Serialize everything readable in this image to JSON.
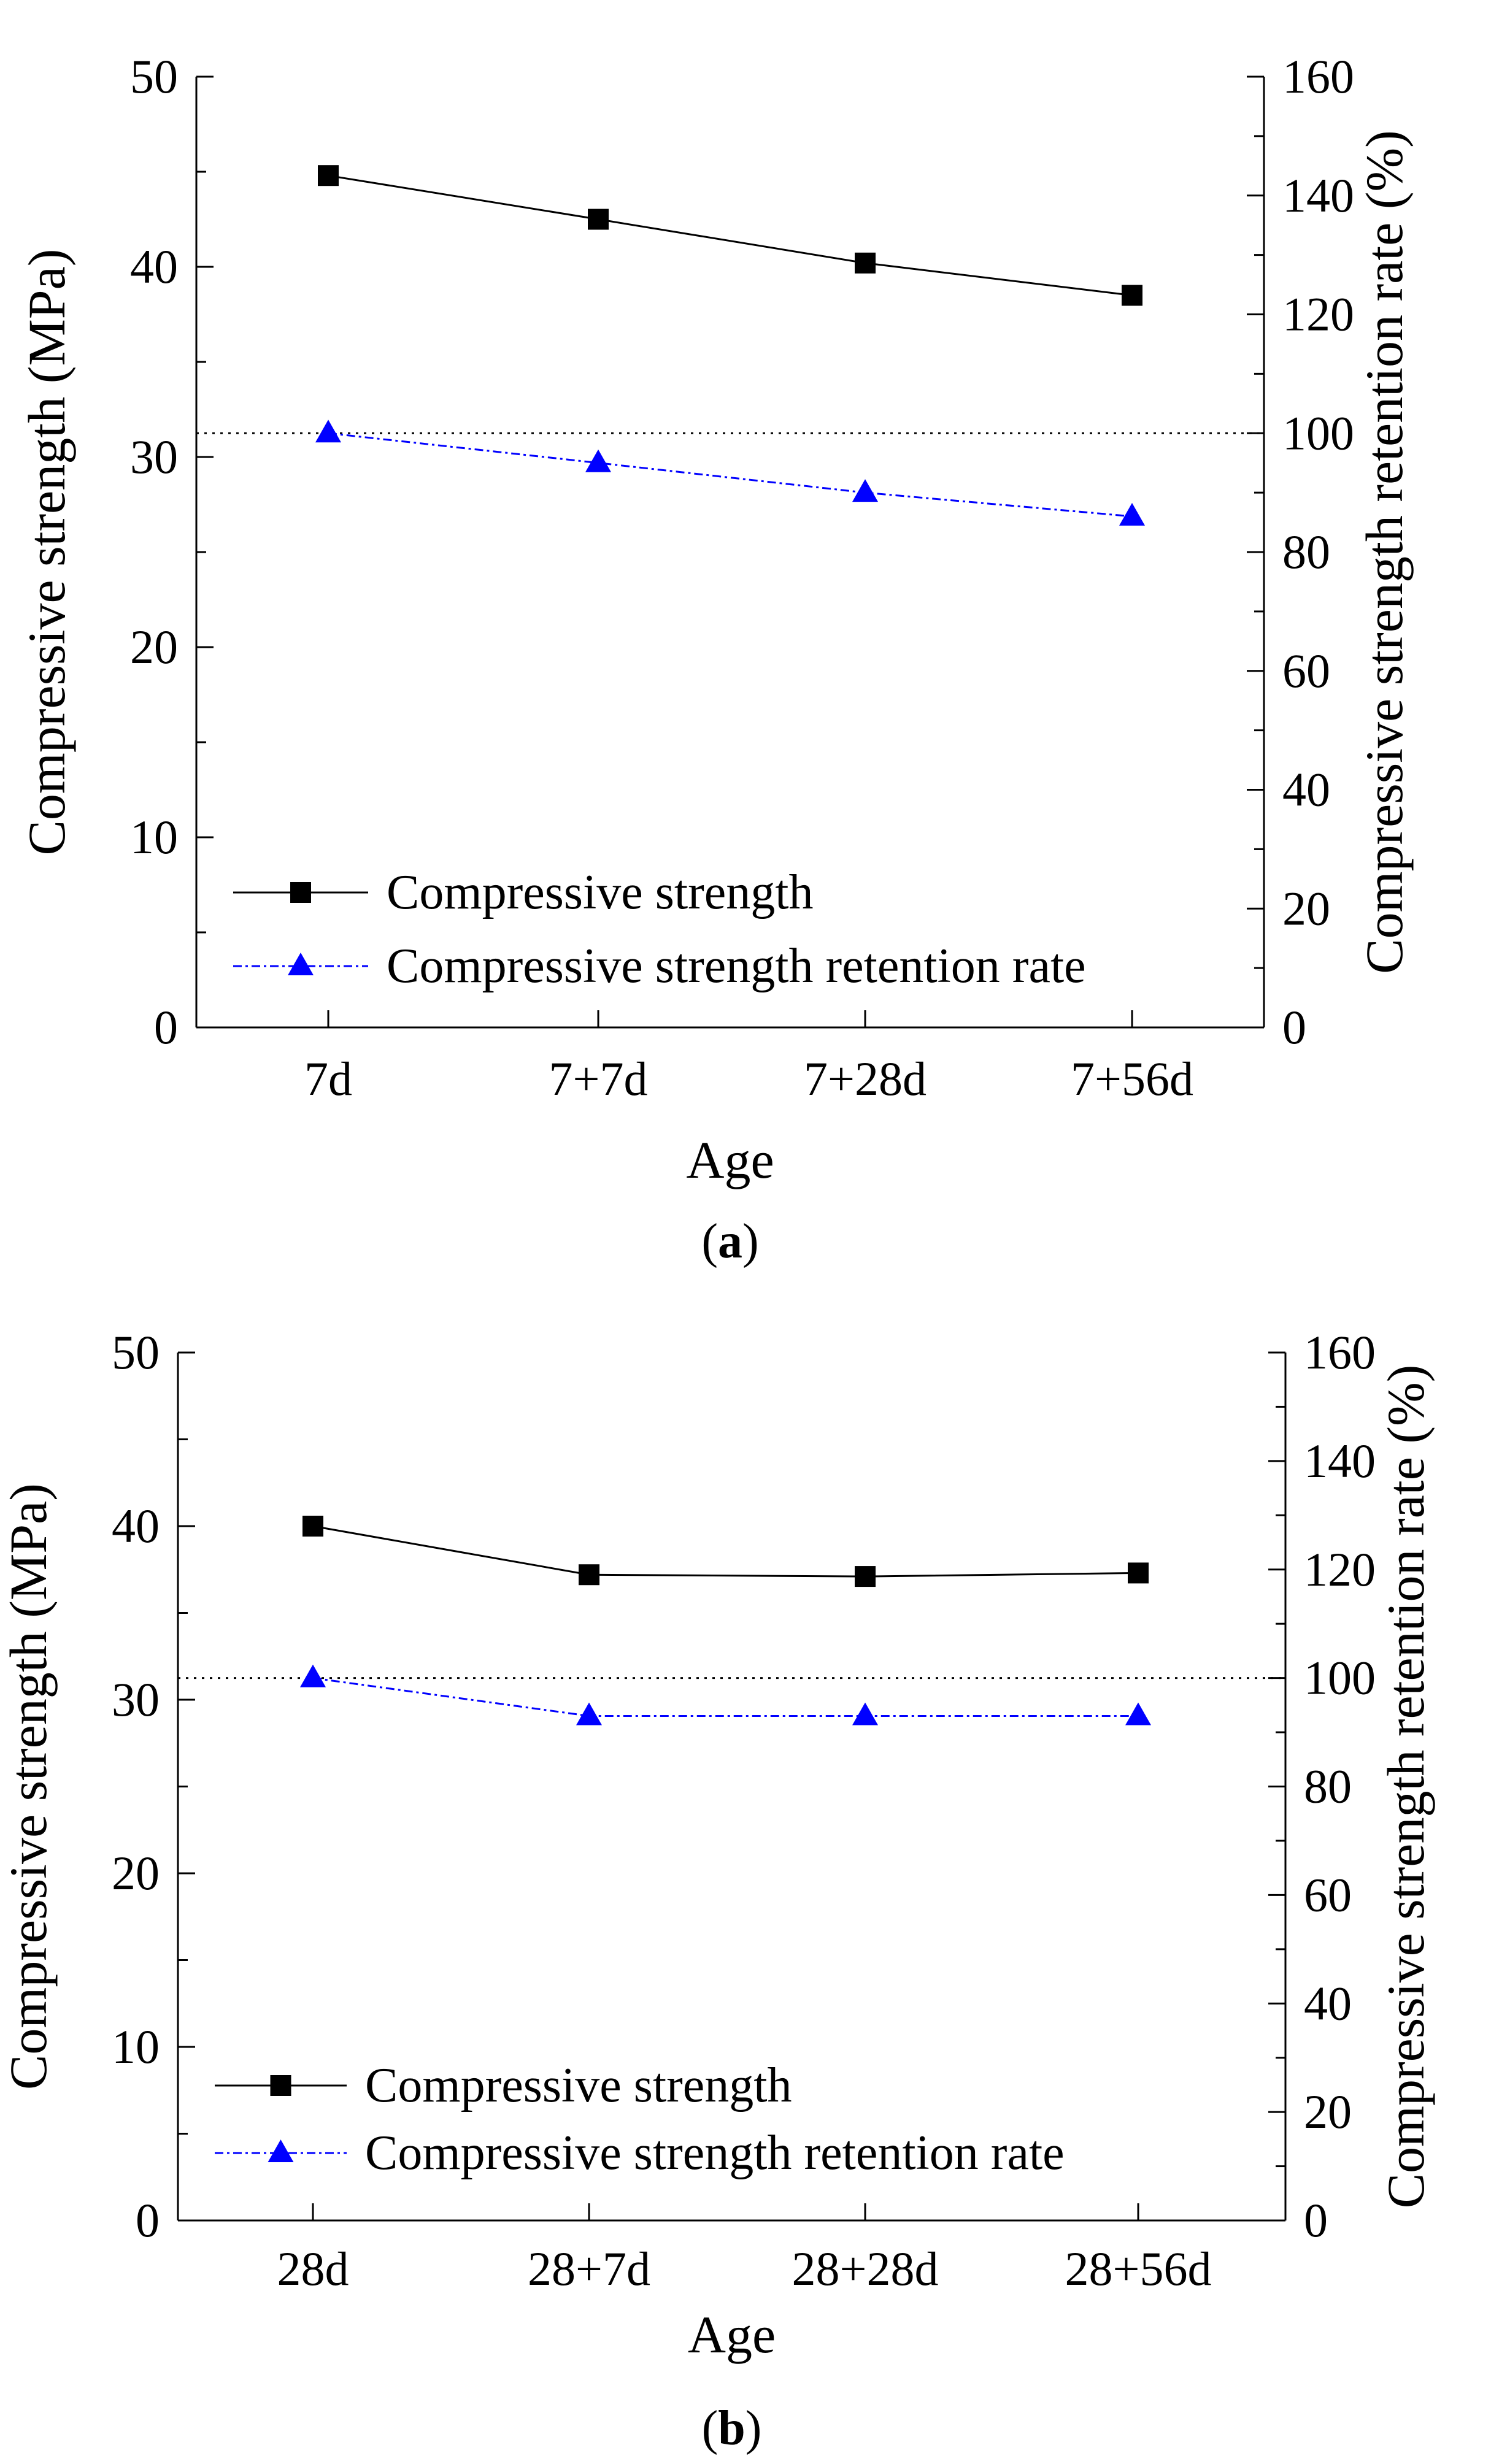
{
  "chart_data": [
    {
      "type": "line",
      "panel_label": "a",
      "categories": [
        "7d",
        "7+7d",
        "7+28d",
        "7+56d"
      ],
      "xlabel": "Age",
      "ylabel": "Compressive strength (MPa)",
      "y2label": "Compressive strength retention rate (%)",
      "ylim": [
        0,
        50
      ],
      "y2lim": [
        0,
        160
      ],
      "yticks": [
        "0",
        "10",
        "20",
        "30",
        "40",
        "50"
      ],
      "y2ticks": [
        "0",
        "20",
        "40",
        "60",
        "80",
        "100",
        "120",
        "140",
        "160"
      ],
      "reference_line_y2": 100,
      "series": [
        {
          "name": "Compressive strength",
          "axis": "left",
          "marker": "square",
          "color": "#000000",
          "values": [
            44.8,
            42.5,
            40.2,
            38.5
          ]
        },
        {
          "name": "Compressive strength retention rate",
          "axis": "right",
          "marker": "triangle",
          "color": "#0000ff",
          "values": [
            100,
            95,
            90,
            86
          ]
        }
      ]
    },
    {
      "type": "line",
      "panel_label": "b",
      "categories": [
        "28d",
        "28+7d",
        "28+28d",
        "28+56d"
      ],
      "xlabel": "Age",
      "ylabel": "Compressive strength (MPa)",
      "y2label": "Compressive strength retention rate (%)",
      "ylim": [
        0,
        50
      ],
      "y2lim": [
        0,
        160
      ],
      "yticks": [
        "0",
        "10",
        "20",
        "30",
        "40",
        "50"
      ],
      "y2ticks": [
        "0",
        "20",
        "40",
        "60",
        "80",
        "100",
        "120",
        "140",
        "160"
      ],
      "reference_line_y2": 100,
      "series": [
        {
          "name": "Compressive strength",
          "axis": "left",
          "marker": "square",
          "color": "#000000",
          "values": [
            40.0,
            37.2,
            37.1,
            37.3
          ]
        },
        {
          "name": "Compressive strength retention rate",
          "axis": "right",
          "marker": "triangle",
          "color": "#0000ff",
          "values": [
            100,
            93,
            93,
            93
          ]
        }
      ]
    }
  ]
}
